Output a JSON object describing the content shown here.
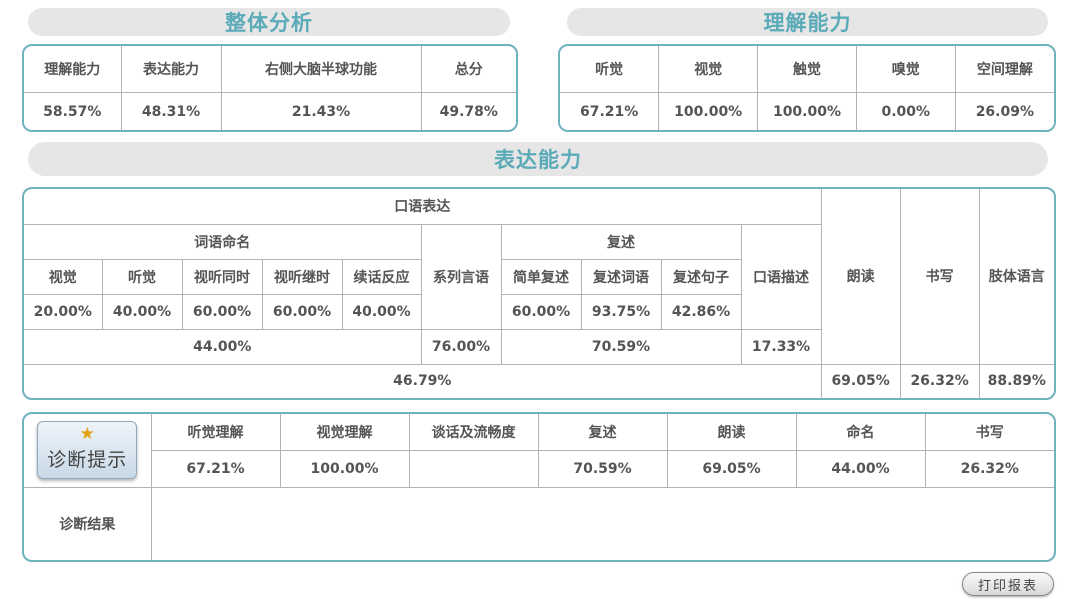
{
  "sections": {
    "overall_title": "整体分析",
    "comprehension_title": "理解能力",
    "expression_title": "表达能力"
  },
  "overall": {
    "headers": [
      "理解能力",
      "表达能力",
      "右侧大脑半球功能",
      "总分"
    ],
    "values": [
      "58.57%",
      "48.31%",
      "21.43%",
      "49.78%"
    ]
  },
  "comprehension": {
    "headers": [
      "听觉",
      "视觉",
      "触觉",
      "嗅觉",
      "空间理解"
    ],
    "values": [
      "67.21%",
      "100.00%",
      "100.00%",
      "0.00%",
      "26.09%"
    ]
  },
  "expression": {
    "oral": "口语表达",
    "naming": "词语命名",
    "naming_items": [
      "视觉",
      "听觉",
      "视听同时",
      "视听继时",
      "续话反应"
    ],
    "naming_values": [
      "20.00%",
      "40.00%",
      "60.00%",
      "60.00%",
      "40.00%"
    ],
    "naming_total": "44.00%",
    "series": "系列言语",
    "series_value": "76.00%",
    "repeat": "复述",
    "repeat_items": [
      "简单复述",
      "复述词语",
      "复述句子"
    ],
    "repeat_values": [
      "60.00%",
      "93.75%",
      "42.86%"
    ],
    "repeat_total": "70.59%",
    "description": "口语描述",
    "description_value": "17.33%",
    "oral_total": "46.79%",
    "reading": "朗读",
    "reading_value": "69.05%",
    "writing": "书写",
    "writing_value": "26.32%",
    "body_language": "肢体语言",
    "body_language_value": "88.89%"
  },
  "diagnosis": {
    "button_label": "诊断提示",
    "headers": [
      "听觉理解",
      "视觉理解",
      "谈话及流畅度",
      "复述",
      "朗读",
      "命名",
      "书写"
    ],
    "values": [
      "67.21%",
      "100.00%",
      "",
      "70.59%",
      "69.05%",
      "44.00%",
      "26.32%"
    ],
    "result_label": "诊断结果",
    "result_text": ""
  },
  "print_button": "打印报表",
  "colors": {
    "accent": "#5aaab8",
    "border": "#6fb2bd",
    "title_bg": "#e6e6e6",
    "star": "#e2a317"
  },
  "icons": {
    "diag_star": "star-icon"
  }
}
